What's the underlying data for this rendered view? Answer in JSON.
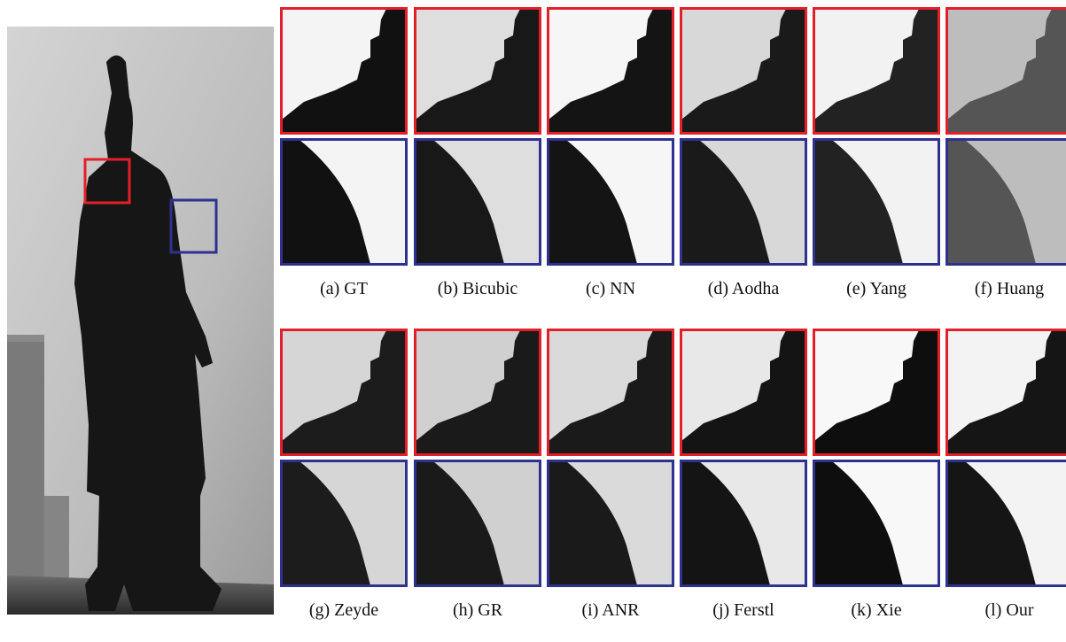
{
  "panels": [
    {
      "label": "(a) GT"
    },
    {
      "label": "(b) Bicubic"
    },
    {
      "label": "(c) NN"
    },
    {
      "label": "(d) Aodha"
    },
    {
      "label": "(e) Yang"
    },
    {
      "label": "(f) Huang"
    },
    {
      "label": "(g) Zeyde"
    },
    {
      "label": "(h) GR"
    },
    {
      "label": "(i) ANR"
    },
    {
      "label": "(j) Ferstl"
    },
    {
      "label": "(k) Xie"
    },
    {
      "label": "(l) Our"
    }
  ]
}
